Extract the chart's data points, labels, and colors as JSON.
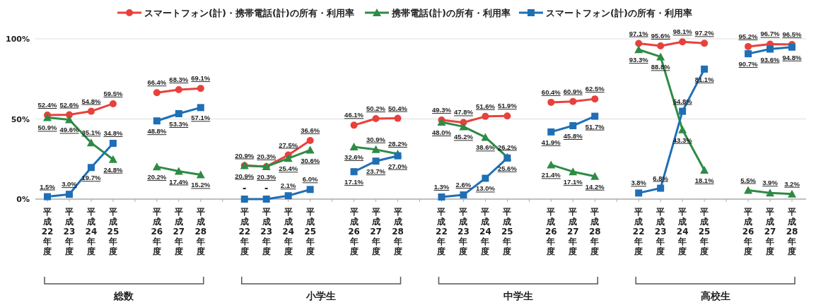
{
  "chart_data": {
    "type": "line",
    "categories": [
      "平成22年度",
      "平成23年度",
      "平成24年度",
      "平成25年度",
      null,
      "平成26年度",
      "平成27年度",
      "平成28年度",
      null,
      "平成22年度",
      "平成23年度",
      "平成24年度",
      "平成25年度",
      null,
      "平成26年度",
      "平成27年度",
      "平成28年度",
      null,
      "平成22年度",
      "平成23年度",
      "平成24年度",
      "平成25年度",
      null,
      "平成26年度",
      "平成27年度",
      "平成28年度",
      null,
      "平成22年度",
      "平成23年度",
      "平成24年度",
      "平成25年度",
      null,
      "平成26年度",
      "平成27年度",
      "平成28年度"
    ],
    "series": [
      {
        "name": "スマートフォン(計)・携帯電話(計)の所有・利用率",
        "color": "#e8413c",
        "marker": "circle",
        "values": [
          52.4,
          52.6,
          54.8,
          59.5,
          null,
          66.4,
          68.3,
          69.1,
          null,
          20.9,
          20.3,
          27.5,
          36.6,
          null,
          46.1,
          50.2,
          50.4,
          null,
          49.3,
          47.8,
          51.6,
          51.9,
          null,
          60.4,
          60.9,
          62.5,
          null,
          97.1,
          95.6,
          98.1,
          97.2,
          null,
          95.2,
          96.7,
          96.5
        ],
        "value_labels": [
          "52.4%",
          "52.6%",
          "54.8%",
          "59.5%",
          null,
          "66.4%",
          "68.3%",
          "69.1%",
          null,
          "20.9%",
          "20.3%",
          "27.5%",
          "36.6%",
          null,
          "46.1%",
          "50.2%",
          "50.4%",
          null,
          "49.3%",
          "47.8%",
          "51.6%",
          "51.9%",
          null,
          "60.4%",
          "60.9%",
          "62.5%",
          null,
          "97.1%",
          "95.6%",
          "98.1%",
          "97.2%",
          null,
          "95.2%",
          "96.7%",
          "96.5%"
        ]
      },
      {
        "name": "携帯電話(計)の所有・利用率",
        "color": "#2e8b45",
        "marker": "triangle",
        "values": [
          50.9,
          49.6,
          35.1,
          24.8,
          null,
          20.2,
          17.4,
          15.2,
          null,
          20.9,
          20.3,
          25.4,
          30.6,
          null,
          32.6,
          30.9,
          28.2,
          null,
          48.0,
          45.2,
          38.6,
          26.2,
          null,
          21.4,
          17.1,
          14.2,
          null,
          93.3,
          88.8,
          43.3,
          18.1,
          null,
          5.5,
          3.9,
          3.2
        ],
        "value_labels": [
          "50.9%",
          "49.6%",
          "35.1%",
          "24.8%",
          null,
          "20.2%",
          "17.4%",
          "15.2%",
          null,
          "20.9%",
          "20.3%",
          "25.4%",
          "30.6%",
          null,
          "32.6%",
          "30.9%",
          "28.2%",
          null,
          "48.0%",
          "45.2%",
          "38.6%",
          "26.2%",
          null,
          "21.4%",
          "17.1%",
          "14.2%",
          null,
          "93.3%",
          "88.8%",
          "43.3%",
          "18.1%",
          null,
          "5.5%",
          "3.9%",
          "3.2%"
        ]
      },
      {
        "name": "スマートフォン(計)の所有・利用率",
        "color": "#1f6fb5",
        "marker": "square",
        "values": [
          1.5,
          3.0,
          19.7,
          34.8,
          null,
          48.8,
          53.3,
          57.1,
          null,
          0,
          0,
          2.1,
          6.0,
          null,
          17.1,
          23.7,
          27.0,
          null,
          1.3,
          2.6,
          13.0,
          25.6,
          null,
          41.9,
          45.8,
          51.7,
          null,
          3.8,
          6.8,
          54.8,
          81.1,
          null,
          90.7,
          93.6,
          94.8
        ],
        "value_labels": [
          "1.5%",
          "3.0%",
          "19.7%",
          "34.8%",
          null,
          "48.8%",
          "53.3%",
          "57.1%",
          null,
          "-",
          "-",
          "2.1%",
          "6.0%",
          null,
          "17.1%",
          "23.7%",
          "27.0%",
          null,
          "1.3%",
          "2.6%",
          "13.0%",
          "25.6%",
          null,
          "41.9%",
          "45.8%",
          "51.7%",
          null,
          "3.8%",
          "6.8%",
          "54.8%",
          "81.1%",
          null,
          "90.7%",
          "93.6%",
          "94.8%"
        ]
      }
    ],
    "ylim": [
      0,
      100
    ],
    "yticks": [
      {
        "value": 0,
        "label": "0%"
      },
      {
        "value": 50,
        "label": "50%"
      },
      {
        "value": 100,
        "label": "100%"
      }
    ],
    "grid": "y",
    "legend": "top",
    "annotations": [
      "総数",
      "小学生",
      "中学生",
      "高校生"
    ]
  }
}
